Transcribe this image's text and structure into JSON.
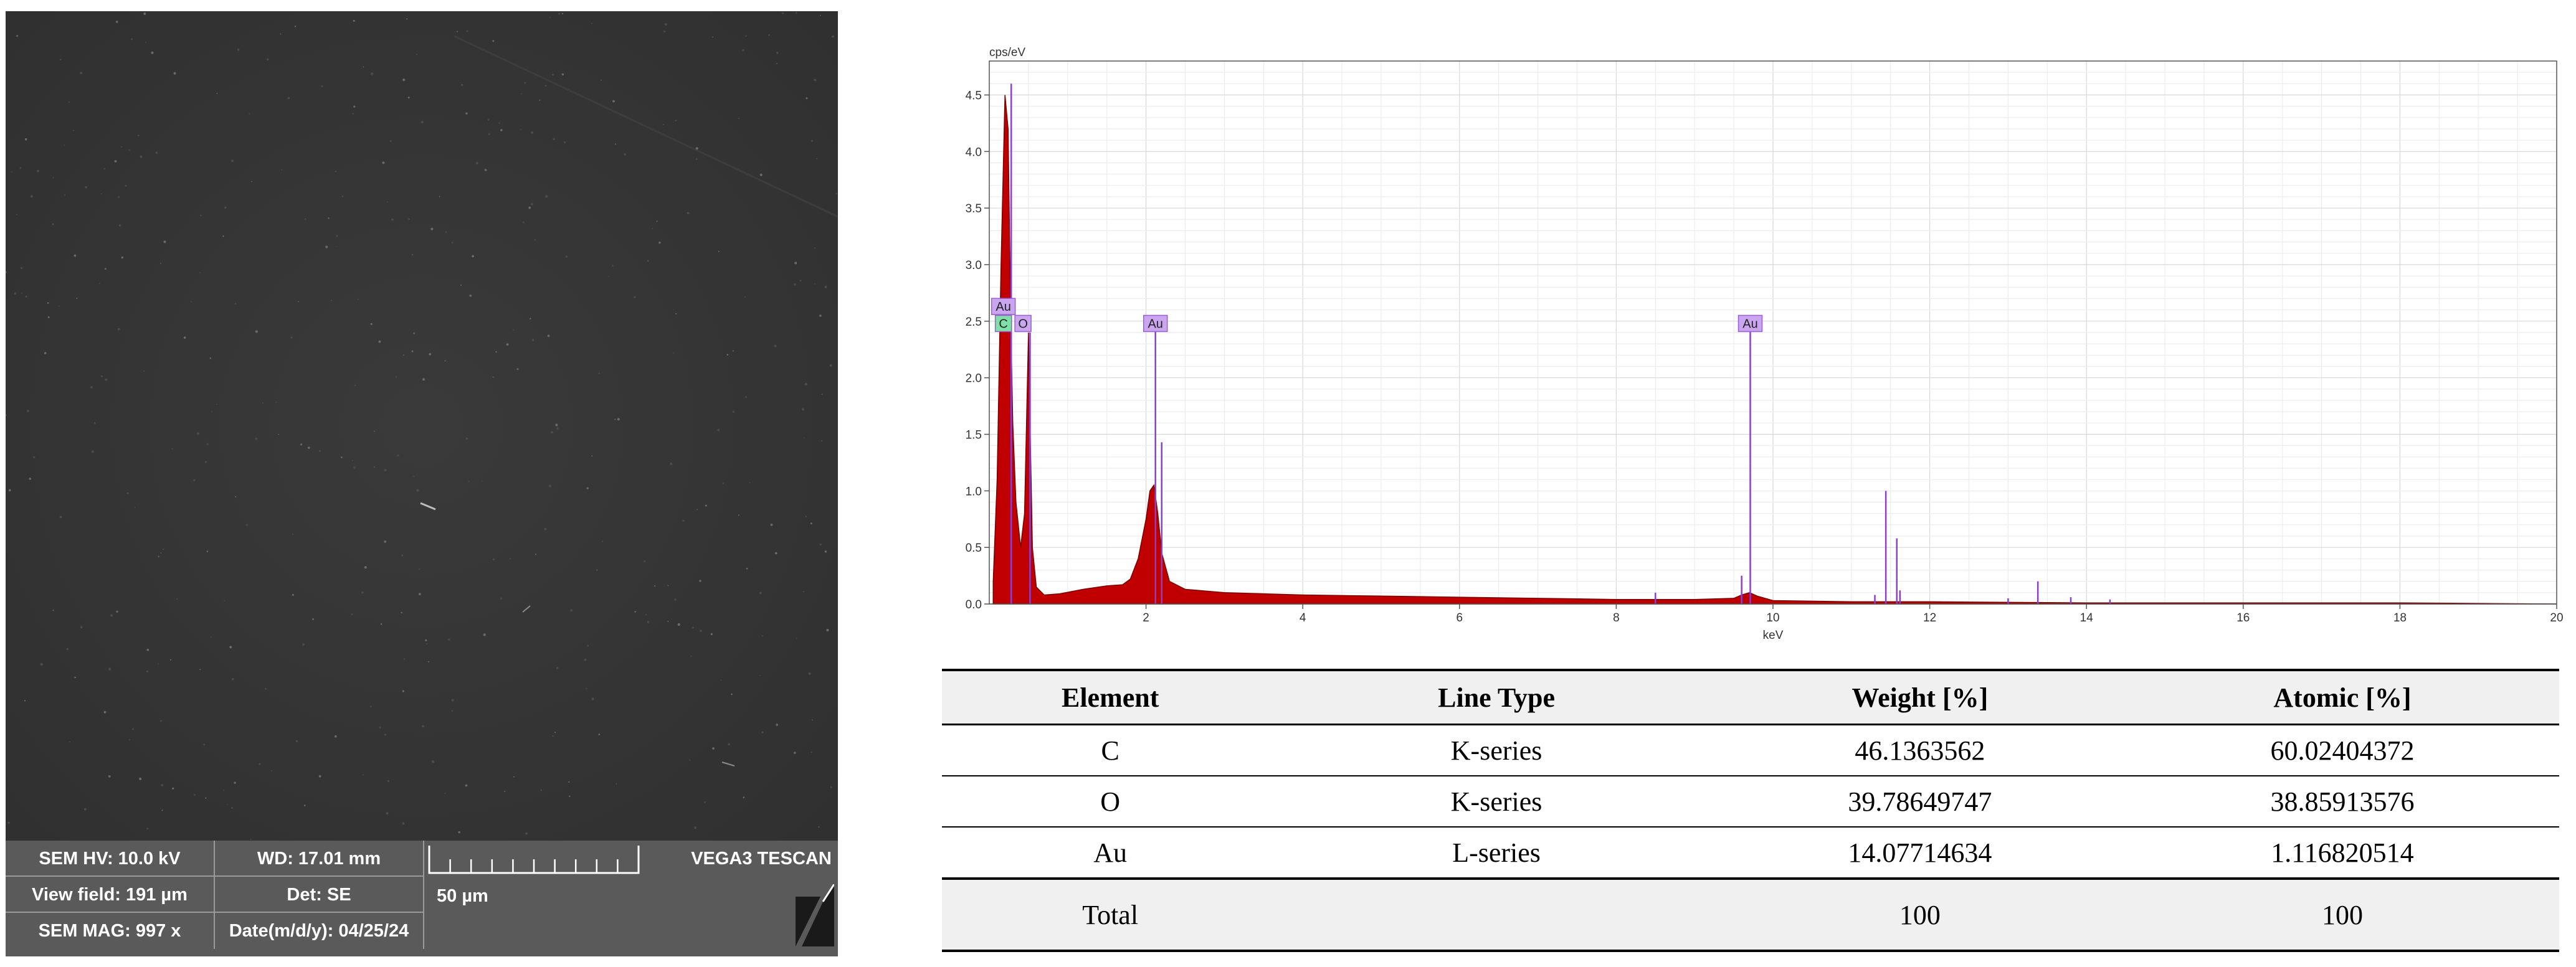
{
  "sem": {
    "hv_label": "SEM HV: 10.0 kV",
    "wd_label": "WD: 17.01 mm",
    "view_field_label": "View field: 191 µm",
    "det_label": "Det: SE",
    "mag_label": "SEM MAG: 997 x",
    "date_label": "Date(m/d/y): 04/25/24",
    "scale_label": "50 µm",
    "vendor_label": "VEGA3 TESCAN"
  },
  "colors": {
    "spectrum_fill": "#c00000",
    "peak_marker": "#8a3fd1",
    "au_tag": "#c9a6ef",
    "c_tag": "#7ee0a8",
    "o_tag": "#c9a6ef"
  },
  "chart_data": {
    "type": "area",
    "title": "",
    "xlabel": "keV",
    "ylabel": "cps/eV",
    "xlim": [
      0,
      20
    ],
    "ylim": [
      0,
      4.8
    ],
    "grid": true,
    "x_ticks": [
      2,
      4,
      6,
      8,
      10,
      12,
      14,
      16,
      18,
      20
    ],
    "y_ticks": [
      "0.0",
      "0.5",
      "1.0",
      "1.5",
      "2.0",
      "2.5",
      "3.0",
      "3.5",
      "4.0",
      "4.5"
    ],
    "series": [
      {
        "x": [
          0.05,
          0.1,
          0.15,
          0.2,
          0.24,
          0.26,
          0.28,
          0.3,
          0.34,
          0.4,
          0.45,
          0.5,
          0.52,
          0.55,
          0.6,
          0.7,
          0.9,
          1.2,
          1.5,
          1.7,
          1.8,
          1.9,
          2.0,
          2.05,
          2.1,
          2.15,
          2.2,
          2.3,
          2.5,
          3.0,
          4.0,
          5.0,
          6.0,
          7.0,
          8.0,
          9.0,
          9.5,
          9.6,
          9.7,
          9.8,
          10.0,
          11.0,
          12.0,
          14.0,
          16.0,
          18.0,
          20.0
        ],
        "y": [
          0.2,
          1.1,
          3.0,
          4.5,
          4.2,
          3.2,
          2.3,
          1.6,
          0.9,
          0.5,
          0.8,
          2.4,
          1.6,
          0.5,
          0.15,
          0.08,
          0.09,
          0.13,
          0.16,
          0.17,
          0.22,
          0.4,
          0.75,
          1.0,
          1.05,
          0.8,
          0.45,
          0.2,
          0.13,
          0.1,
          0.08,
          0.07,
          0.06,
          0.05,
          0.04,
          0.04,
          0.05,
          0.08,
          0.1,
          0.07,
          0.03,
          0.02,
          0.02,
          0.01,
          0.01,
          0.01,
          0.0
        ]
      }
    ],
    "marker_lines": [
      {
        "x": 0.28,
        "y": 4.6
      },
      {
        "x": 0.52,
        "y": 2.4
      },
      {
        "x": 2.12,
        "y": 2.5
      },
      {
        "x": 2.2,
        "y": 1.43
      },
      {
        "x": 8.5,
        "y": 0.1
      },
      {
        "x": 9.6,
        "y": 0.25
      },
      {
        "x": 9.71,
        "y": 2.5
      },
      {
        "x": 11.3,
        "y": 0.08
      },
      {
        "x": 11.44,
        "y": 1.0
      },
      {
        "x": 11.58,
        "y": 0.58
      },
      {
        "x": 11.62,
        "y": 0.12
      },
      {
        "x": 13.0,
        "y": 0.05
      },
      {
        "x": 13.38,
        "y": 0.2
      },
      {
        "x": 13.8,
        "y": 0.06
      },
      {
        "x": 14.3,
        "y": 0.04
      }
    ],
    "peak_labels": [
      {
        "text": "Au",
        "x": 0.18,
        "y": 2.63,
        "color": "au"
      },
      {
        "text": "C",
        "x": 0.18,
        "y": 2.48,
        "color": "c"
      },
      {
        "text": "O",
        "x": 0.43,
        "y": 2.48,
        "color": "o"
      },
      {
        "text": "Au",
        "x": 2.12,
        "y": 2.48,
        "color": "au"
      },
      {
        "text": "Au",
        "x": 9.71,
        "y": 2.48,
        "color": "au"
      }
    ]
  },
  "table": {
    "headers": [
      "Element",
      "Line Type",
      "Weight [%]",
      "Atomic [%]"
    ],
    "rows": [
      [
        "C",
        "K-series",
        "46.1363562",
        "60.02404372"
      ],
      [
        "O",
        "K-series",
        "39.78649747",
        "38.85913576"
      ],
      [
        "Au",
        "L-series",
        "14.07714634",
        "1.116820514"
      ]
    ],
    "total": [
      "Total",
      "",
      "100",
      "100"
    ]
  }
}
